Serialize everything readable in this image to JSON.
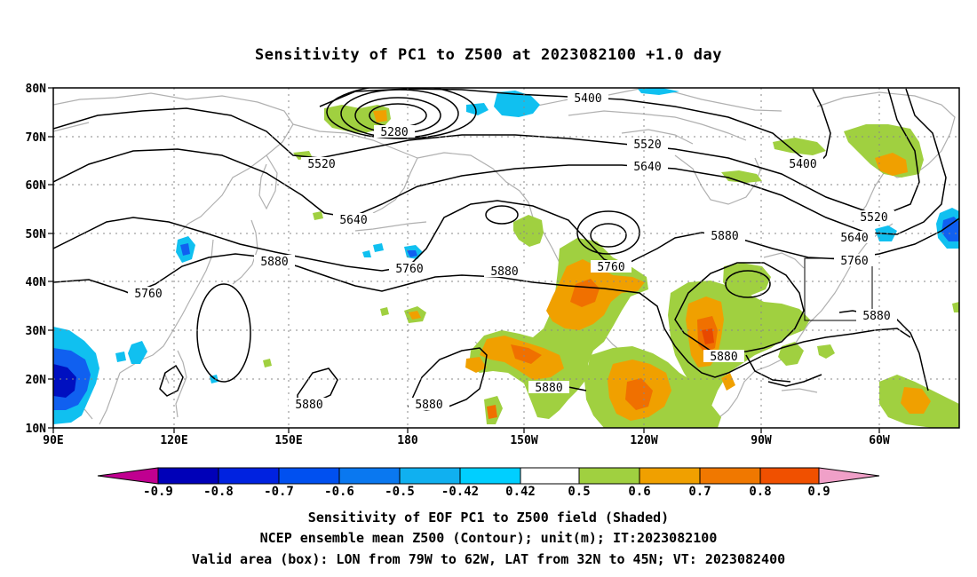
{
  "title": "Sensitivity of PC1 to Z500 at 2023082100 +1.0 day",
  "lat_labels": [
    "80N",
    "70N",
    "60N",
    "50N",
    "40N",
    "30N",
    "20N",
    "10N"
  ],
  "lon_labels": [
    "90E",
    "120E",
    "150E",
    "180",
    "150W",
    "120W",
    "90W",
    "60W"
  ],
  "contour_labels": {
    "c5400a": "5400",
    "c5280": "5280",
    "c5520a": "5520",
    "c5520b": "5520",
    "c5640a": "5640",
    "c5400b": "5400",
    "c5520c": "5520",
    "c5640b": "5640",
    "c5640c": "5640",
    "c5760a": "5760",
    "c5880a": "5880",
    "c5880b": "5880",
    "c5760b": "5760",
    "c5760c": "5760",
    "c5880c": "5880",
    "c5880d": "5880",
    "c5880e": "5880",
    "c5880f": "5880",
    "c5880g": "5880",
    "c5760d": "5760",
    "c5880h": "5880"
  },
  "colorbar": {
    "labels": [
      "-0.9",
      "-0.8",
      "-0.7",
      "-0.6",
      "-0.5",
      "-0.42",
      "0.42",
      "0.5",
      "0.6",
      "0.7",
      "0.8",
      "0.9"
    ],
    "colors": [
      "#c00090",
      "#0000b8",
      "#0022e0",
      "#0050f0",
      "#0a78f0",
      "#10b0f0",
      "#00cfff",
      "#ffffff",
      "#a0d040",
      "#f0a000",
      "#f07800",
      "#f05000",
      "#f01800",
      "#ff0020",
      "#f0a0c8"
    ]
  },
  "captions": {
    "line1": "Sensitivity of EOF PC1 to Z500 field (Shaded)",
    "line2": "NCEP ensemble mean Z500 (Contour); unit(m); IT:2023082100",
    "line3": "Valid area (box): LON from 79W to 62W, LAT from 32N to 45N; VT: 2023082400"
  },
  "shading_colors": {
    "green": "#a0d040",
    "orange": "#f0a000",
    "dark_orange": "#f07000",
    "red_orange": "#e84800",
    "cyan": "#10c0f0",
    "blue": "#1060f0",
    "dark_blue": "#0010c0",
    "coast": "#b0b0b0"
  }
}
